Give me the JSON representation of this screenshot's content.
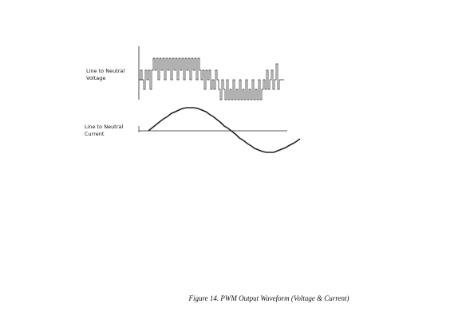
{
  "figure": {
    "voltage_label": [
      "Line to Neutral",
      "Voltage"
    ],
    "current_label": [
      "Line to Neutral",
      "Current"
    ],
    "caption": "Figure 14. PWM Output Waveform (Voltage & Current)"
  }
}
